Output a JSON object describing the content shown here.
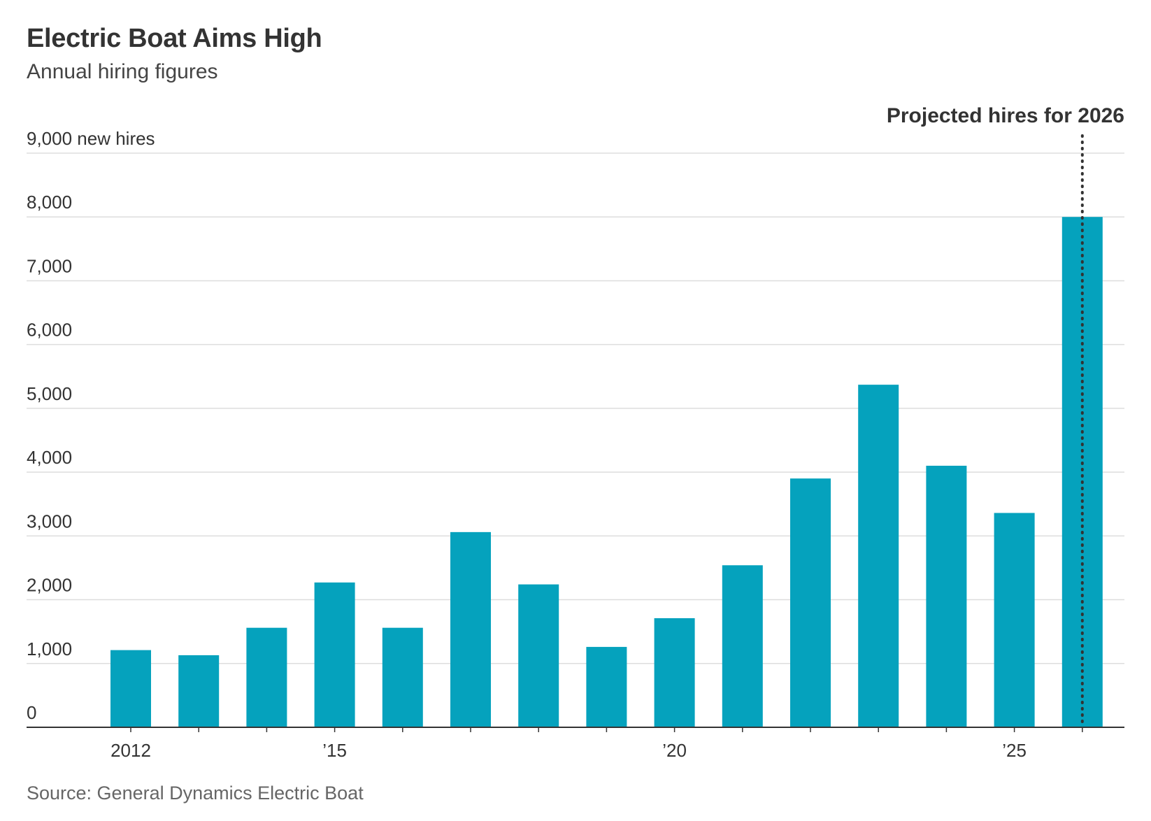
{
  "header": {
    "title": "Electric Boat Aims High",
    "subtitle": "Annual hiring figures"
  },
  "footer": {
    "source": "Source: General Dynamics Electric Boat"
  },
  "colors": {
    "bar": "#05a2bd",
    "gridline": "#dddddd",
    "axis": "#333333",
    "text": "#333333",
    "annotation_line": "#333333"
  },
  "chart_data": {
    "type": "bar",
    "title": "Electric Boat Aims High",
    "subtitle": "Annual hiring figures",
    "ylabel": "",
    "xlabel": "",
    "categories": [
      "2012",
      "2013",
      "2014",
      "2015",
      "2016",
      "2017",
      "2018",
      "2019",
      "2020",
      "2021",
      "2022",
      "2023",
      "2024",
      "2025",
      "2026"
    ],
    "values": [
      1210,
      1130,
      1560,
      2270,
      1560,
      3060,
      2240,
      1260,
      1710,
      2540,
      3900,
      5370,
      4100,
      3360,
      8000
    ],
    "ylim": [
      0,
      9000
    ],
    "yticks": [
      0,
      1000,
      2000,
      3000,
      4000,
      5000,
      6000,
      7000,
      8000,
      9000
    ],
    "ytick_labels": [
      "0",
      "1,000",
      "2,000",
      "3,000",
      "4,000",
      "5,000",
      "6,000",
      "7,000",
      "8,000",
      "9,000 new hires"
    ],
    "xtick_labels": [
      {
        "category": "2012",
        "label": "2012"
      },
      {
        "category": "2015",
        "label": "’15"
      },
      {
        "category": "2020",
        "label": "’20"
      },
      {
        "category": "2025",
        "label": "’25"
      }
    ],
    "grid": true,
    "legend": "none",
    "annotation": {
      "category": "2026",
      "text": "Projected hires for 2026"
    }
  }
}
